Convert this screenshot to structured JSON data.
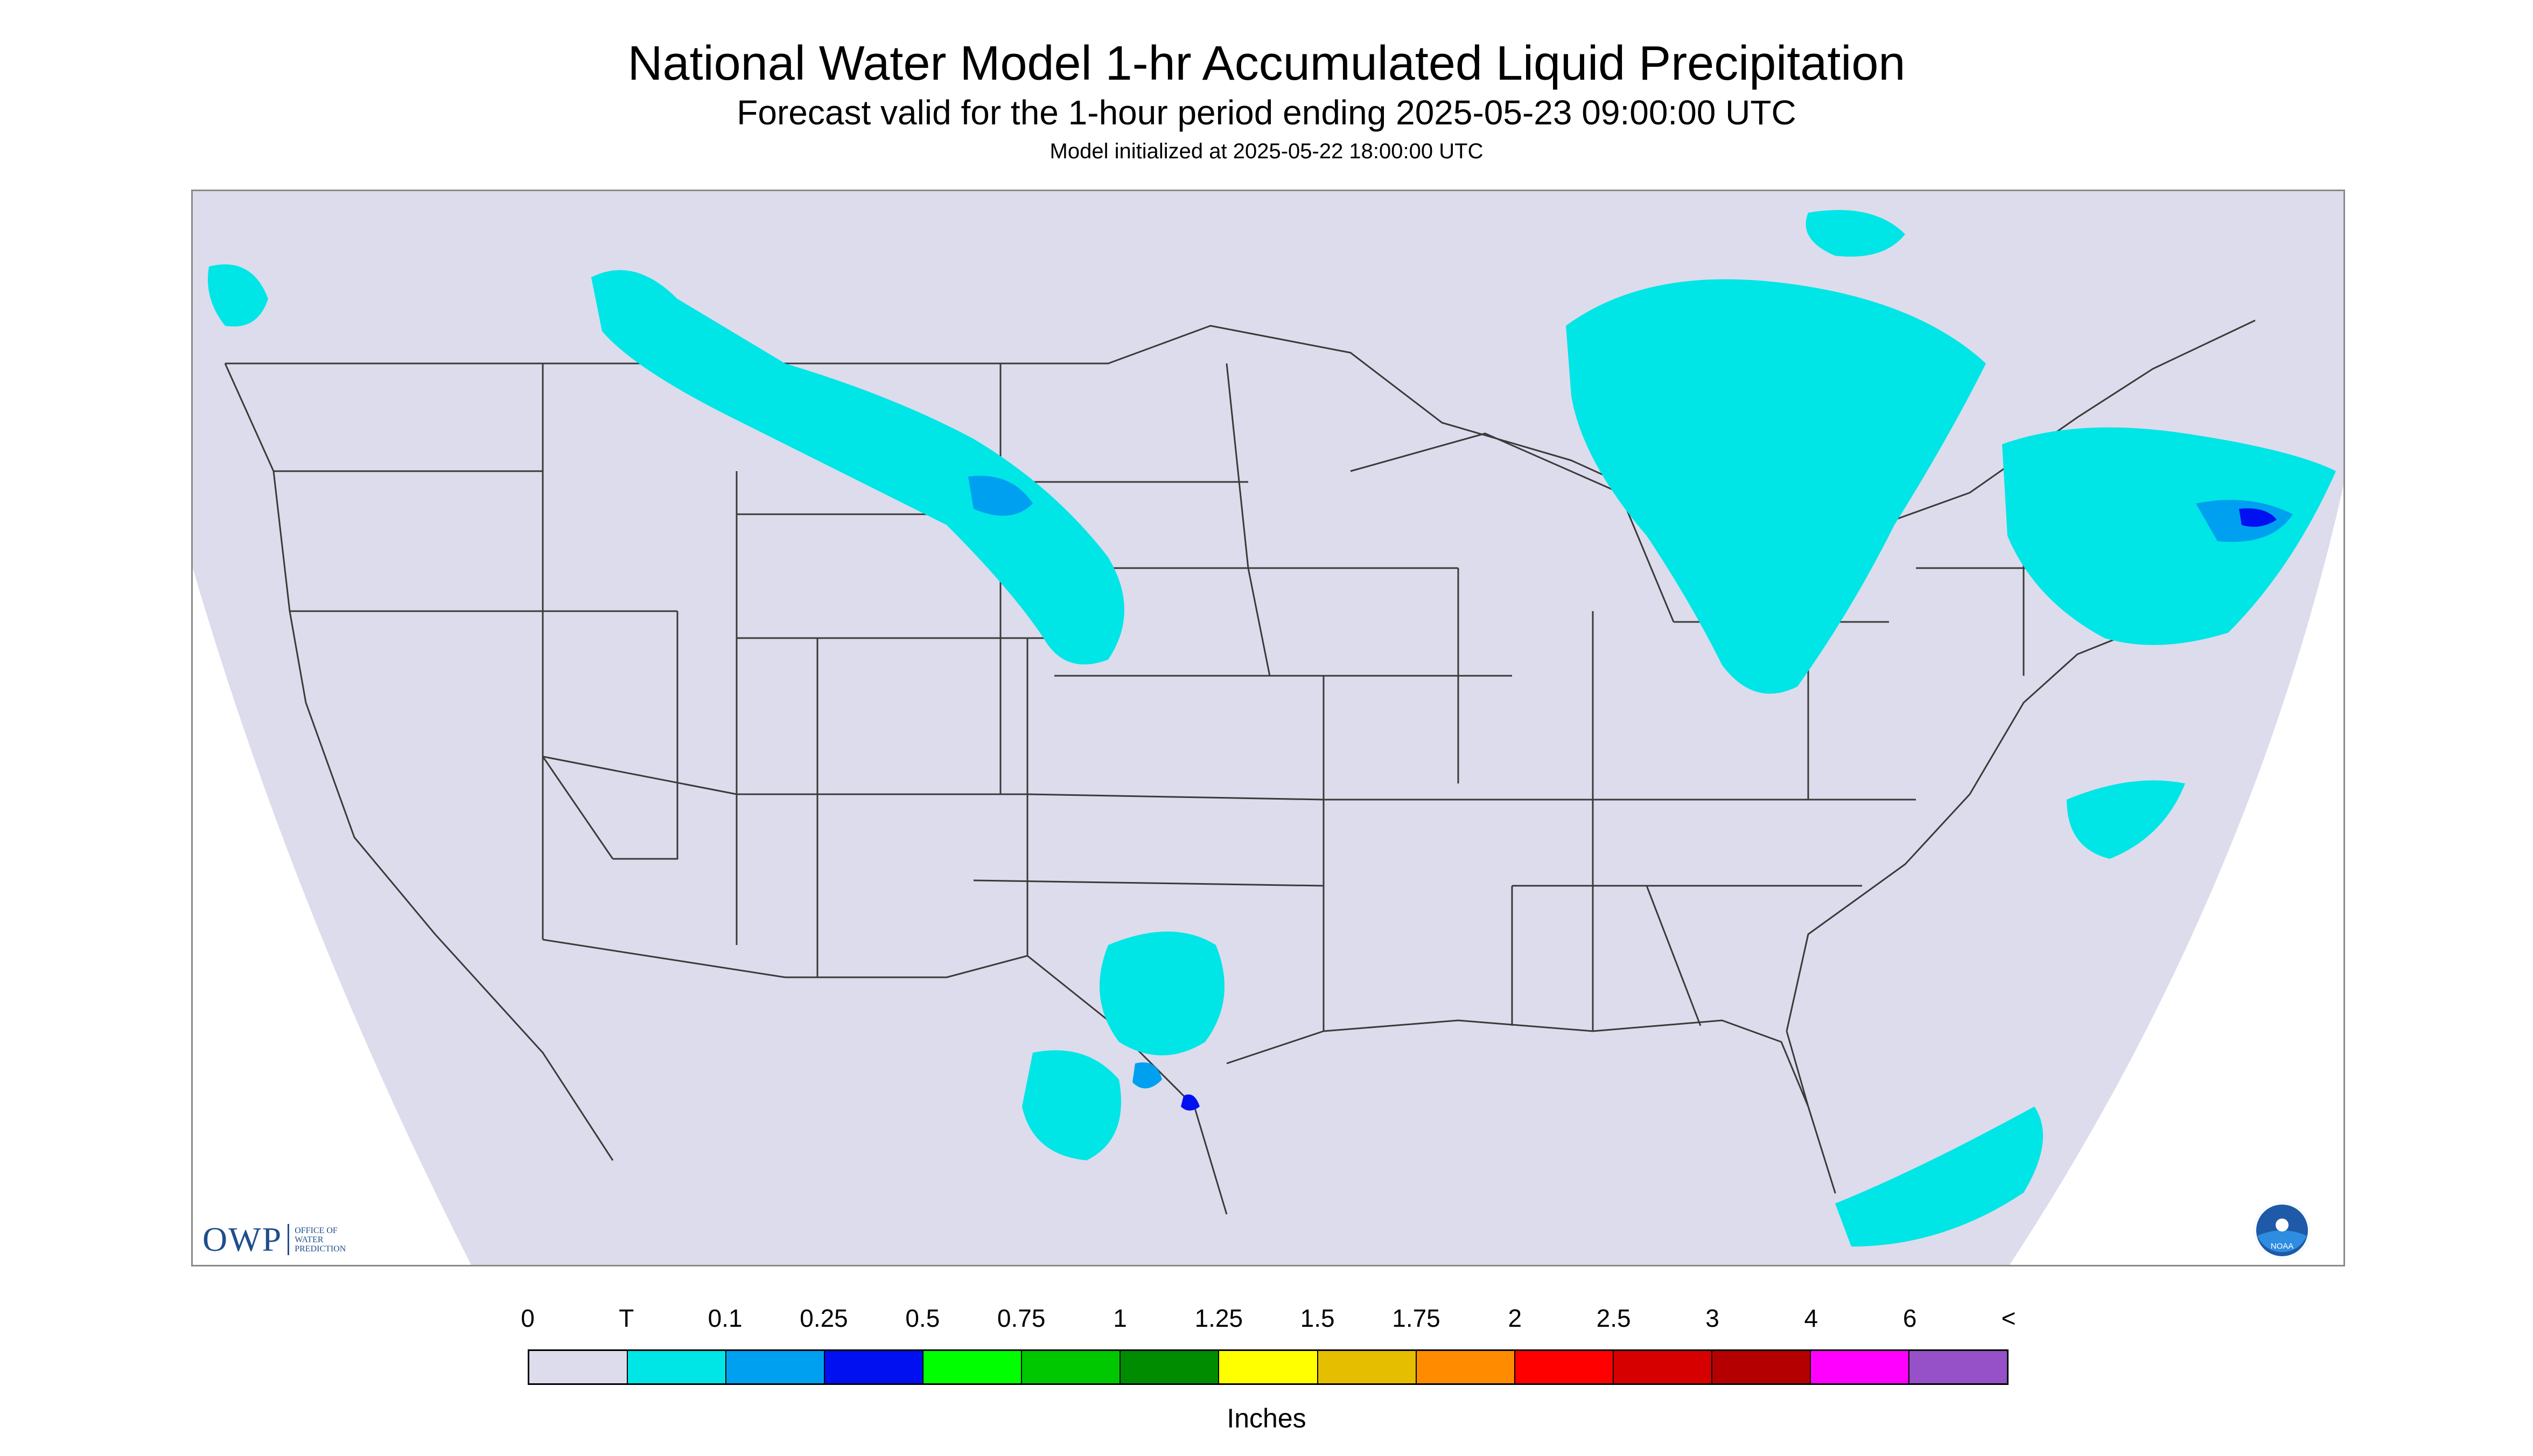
{
  "header": {
    "title": "National Water Model 1-hr Accumulated Liquid Precipitation",
    "subtitle": "Forecast valid for the 1-hour period ending 2025-05-23 09:00:00 UTC",
    "initialized": "Model initialized at 2025-05-22 18:00:00 UTC"
  },
  "logos": {
    "owp_big": "OWP",
    "owp_line1": "OFFICE OF",
    "owp_line2": "WATER",
    "owp_line3": "PREDICTION",
    "noaa_text": "NOAA"
  },
  "colors": {
    "domain": "#dcdcec",
    "outside": "#ffffff",
    "boundary": "#3a3a3a",
    "trace": "#00e5e5",
    "tenth": "#00a0f0",
    "quarter": "#0010f0"
  },
  "legend": {
    "labels": [
      "0",
      "T",
      "0.1",
      "0.25",
      "0.5",
      "0.75",
      "1",
      "1.25",
      "1.5",
      "1.75",
      "2",
      "2.5",
      "3",
      "4",
      "6",
      "<"
    ],
    "colors": [
      "#dcdcec",
      "#00e5e5",
      "#00a0f0",
      "#0010f0",
      "#00ff00",
      "#00c800",
      "#008c00",
      "#ffff00",
      "#e6be00",
      "#ff8c00",
      "#ff0000",
      "#d70000",
      "#b40000",
      "#ff00ff",
      "#9650c8"
    ],
    "units": "Inches"
  }
}
